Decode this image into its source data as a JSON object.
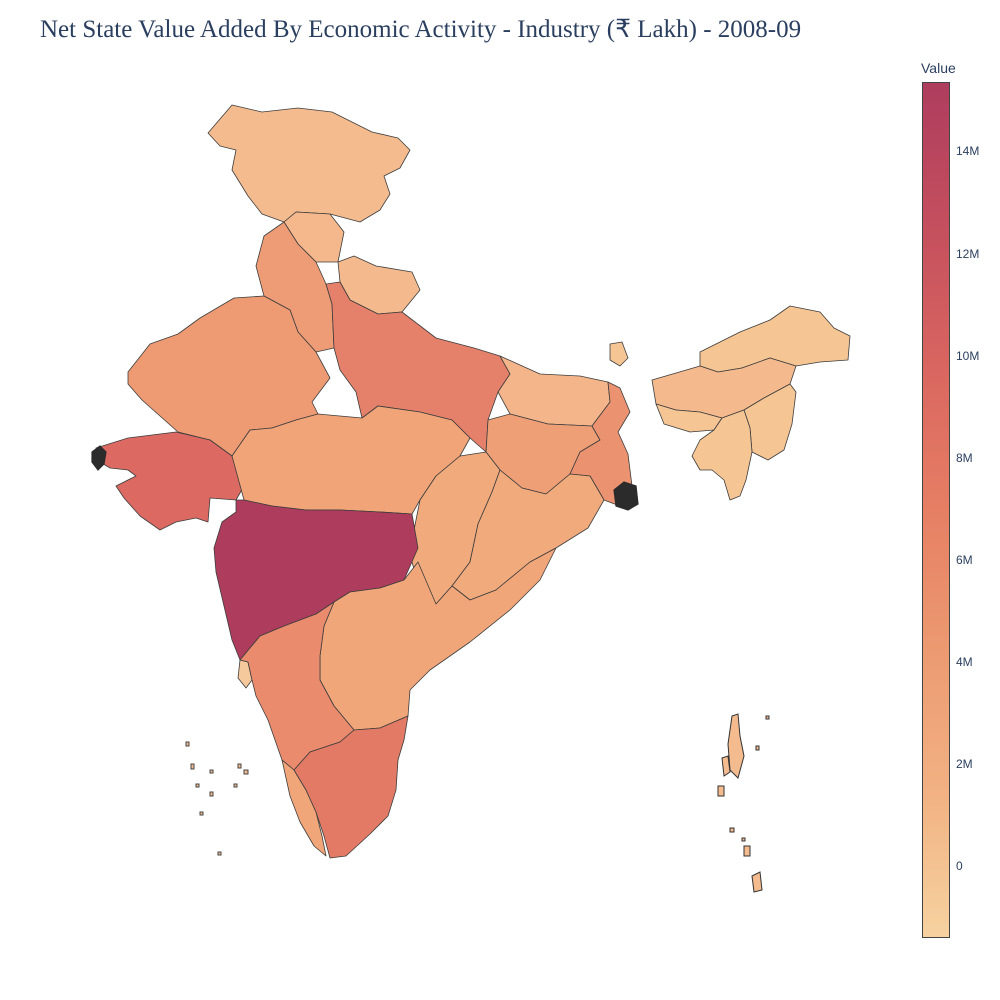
{
  "title": "Net State Value Added By Economic Activity - Industry (₹ Lakh) - 2008-09",
  "colorbar": {
    "title": "Value",
    "ticks": [
      "14M",
      "12M",
      "10M",
      "8M",
      "6M",
      "4M",
      "2M",
      "0"
    ],
    "colorscale": [
      "#f6d2a0",
      "#f2b283",
      "#ec9a71",
      "#e67f64",
      "#d96660",
      "#c44f5e",
      "#ae3d5e"
    ]
  },
  "map": {
    "colors": {
      "maharashtra": "#ae3c5d",
      "gujarat": "#dc6a62",
      "uttar_pradesh": "#e5806a",
      "tamil_nadu": "#e27a65",
      "karnataka": "#e98b6c",
      "west_bengal": "#eb9371",
      "rajasthan": "#ee9b74",
      "andhra_pradesh": "#f0a679",
      "madhya_pradesh": "#f0a477",
      "chhattisgarh_odisha": "#f1aa7c",
      "jharkhand": "#ef9f76",
      "bihar": "#f3b589",
      "kerala": "#f0a679",
      "haryana_punjab": "#ee9c75",
      "himachal": "#f4b88c",
      "jammu_kashmir": "#f4bb8e",
      "uttarakhand": "#f4ba8d",
      "northeast": "#f5c594",
      "assam": "#f4b98c",
      "goa": "#f5c99b",
      "islands": "#f4bb8f"
    }
  }
}
